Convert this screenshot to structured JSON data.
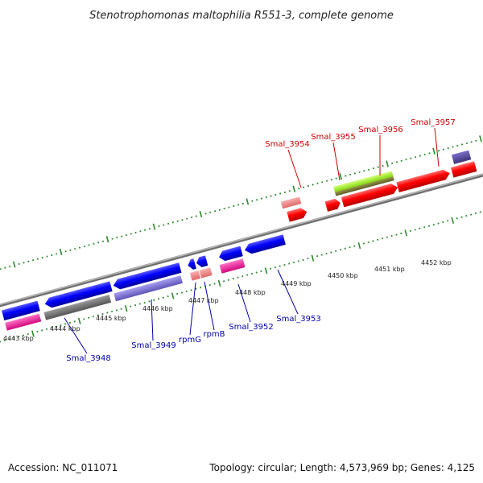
{
  "title": "Stenotrophomonas maltophilia R551-3, complete genome",
  "footer": {
    "accession": "Accession: NC_011071",
    "summary": "Topology: circular; Length: 4,573,969 bp; Genes: 4,125"
  },
  "colors": {
    "forward_gene": "#ff0000",
    "reverse_gene": "#0000ff",
    "forward_label": "#cc0000",
    "reverse_label": "#0000aa",
    "tick": "#2a8a2a",
    "backbone": "#9a9a9a"
  },
  "ticks": [
    "4443 kbp",
    "4444 kbp",
    "4445 kbp",
    "4446 kbp",
    "4447 kbp",
    "4448 kbp",
    "4449 kbp",
    "4450 kbp",
    "4451 kbp",
    "4452 kbp"
  ],
  "forward_labels": [
    "Smal_3954",
    "Smal_3955",
    "Smal_3956",
    "Smal_3957"
  ],
  "reverse_labels": [
    "Smal_3948",
    "Smal_3949",
    "rpmG",
    "rpmB",
    "Smal_3952",
    "Smal_3953"
  ]
}
